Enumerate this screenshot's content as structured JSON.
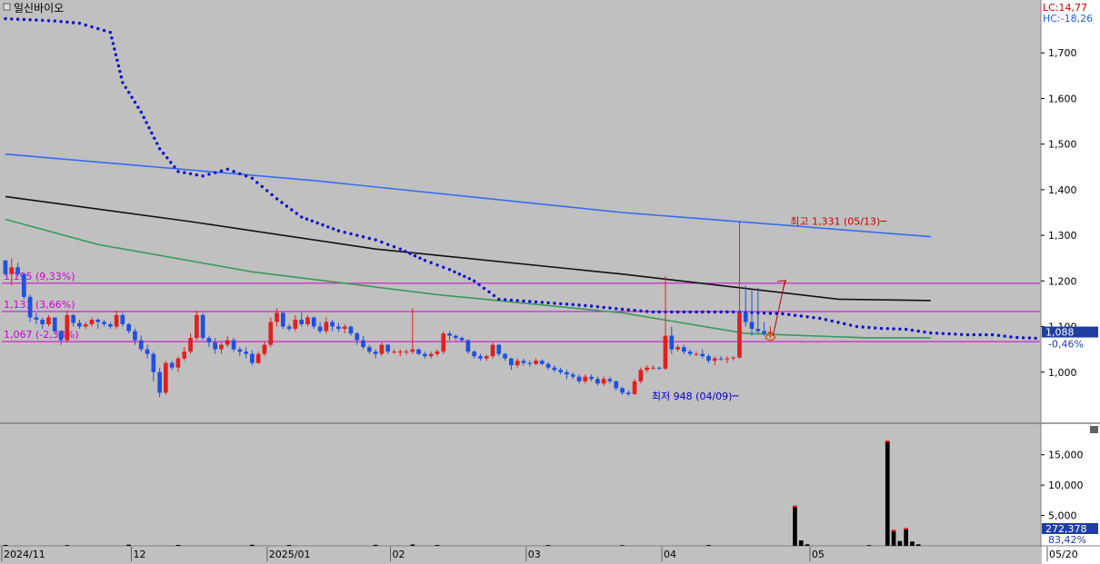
{
  "chart_title": "일신바이오",
  "indicators": {
    "lc": "LC:14,77",
    "hc": "HC:-18,26"
  },
  "colors": {
    "up": "#e02020",
    "down": "#2050e0",
    "ma_blue": "#3a6cf0",
    "ma_black": "#111111",
    "ma_green": "#3a9a5a",
    "dots": "#1010d0",
    "level": "#d000d0",
    "volume": "#000000"
  },
  "chart_data": {
    "type": "candlestick",
    "price_axis": {
      "range": [
        900,
        1800
      ],
      "ticks": [
        1000,
        1100,
        1200,
        1300,
        1400,
        1500,
        1600,
        1700
      ],
      "tick_labels": [
        "1,000",
        "1,100",
        "1,200",
        "1,300",
        "1,400",
        "1,500",
        "1,600",
        "1,700"
      ]
    },
    "volume_axis": {
      "range": [
        0,
        19000
      ],
      "ticks": [
        5000,
        10000,
        15000
      ],
      "tick_labels": [
        "5,000",
        "10,000",
        "15,000"
      ]
    },
    "x_labels": [
      {
        "label": "2024/11",
        "index": 0
      },
      {
        "label": "12",
        "index": 21
      },
      {
        "label": "2025/01",
        "index": 43
      },
      {
        "label": "02",
        "index": 63
      },
      {
        "label": "03",
        "index": 85
      },
      {
        "label": "04",
        "index": 107
      },
      {
        "label": "05",
        "index": 131
      },
      {
        "label": "05/20",
        "index": 164
      }
    ],
    "total_slots": 164,
    "candles": [
      [
        1245,
        1245,
        1210,
        1215
      ],
      [
        1215,
        1250,
        1190,
        1230
      ],
      [
        1230,
        1240,
        1210,
        1215
      ],
      [
        1215,
        1218,
        1160,
        1165
      ],
      [
        1165,
        1170,
        1110,
        1120
      ],
      [
        1120,
        1130,
        1105,
        1115
      ],
      [
        1115,
        1120,
        1095,
        1105
      ],
      [
        1105,
        1125,
        1100,
        1120
      ],
      [
        1120,
        1120,
        1085,
        1090
      ],
      [
        1090,
        1092,
        1060,
        1070
      ],
      [
        1070,
        1135,
        1065,
        1125
      ],
      [
        1125,
        1128,
        1100,
        1108
      ],
      [
        1108,
        1115,
        1095,
        1100
      ],
      [
        1100,
        1110,
        1095,
        1105
      ],
      [
        1105,
        1120,
        1100,
        1115
      ],
      [
        1115,
        1118,
        1095,
        1110
      ],
      [
        1110,
        1115,
        1100,
        1105
      ],
      [
        1105,
        1110,
        1095,
        1100
      ],
      [
        1100,
        1135,
        1095,
        1125
      ],
      [
        1125,
        1130,
        1100,
        1105
      ],
      [
        1105,
        1108,
        1085,
        1090
      ],
      [
        1090,
        1095,
        1060,
        1070
      ],
      [
        1070,
        1080,
        1045,
        1050
      ],
      [
        1050,
        1060,
        1030,
        1040
      ],
      [
        1040,
        1045,
        980,
        1000
      ],
      [
        1000,
        1010,
        945,
        955
      ],
      [
        955,
        1025,
        950,
        1020
      ],
      [
        1020,
        1025,
        1005,
        1010
      ],
      [
        1010,
        1035,
        1000,
        1030
      ],
      [
        1030,
        1055,
        1025,
        1045
      ],
      [
        1045,
        1085,
        1040,
        1075
      ],
      [
        1075,
        1135,
        1070,
        1125
      ],
      [
        1125,
        1130,
        1070,
        1075
      ],
      [
        1075,
        1080,
        1055,
        1065
      ],
      [
        1065,
        1075,
        1040,
        1050
      ],
      [
        1050,
        1065,
        1040,
        1060
      ],
      [
        1060,
        1080,
        1055,
        1070
      ],
      [
        1070,
        1075,
        1045,
        1050
      ],
      [
        1050,
        1055,
        1035,
        1045
      ],
      [
        1045,
        1055,
        1030,
        1040
      ],
      [
        1040,
        1048,
        1015,
        1020
      ],
      [
        1020,
        1045,
        1018,
        1040
      ],
      [
        1040,
        1068,
        1035,
        1060
      ],
      [
        1060,
        1120,
        1055,
        1110
      ],
      [
        1110,
        1140,
        1100,
        1130
      ],
      [
        1130,
        1132,
        1095,
        1100
      ],
      [
        1100,
        1105,
        1090,
        1095
      ],
      [
        1095,
        1125,
        1090,
        1115
      ],
      [
        1115,
        1130,
        1100,
        1105
      ],
      [
        1105,
        1125,
        1100,
        1120
      ],
      [
        1120,
        1122,
        1095,
        1100
      ],
      [
        1100,
        1110,
        1085,
        1090
      ],
      [
        1090,
        1120,
        1085,
        1110
      ],
      [
        1110,
        1115,
        1090,
        1100
      ],
      [
        1100,
        1108,
        1088,
        1095
      ],
      [
        1095,
        1105,
        1085,
        1100
      ],
      [
        1100,
        1102,
        1080,
        1085
      ],
      [
        1085,
        1088,
        1060,
        1070
      ],
      [
        1070,
        1080,
        1050,
        1055
      ],
      [
        1055,
        1060,
        1040,
        1045
      ],
      [
        1045,
        1050,
        1030,
        1040
      ],
      [
        1040,
        1065,
        1035,
        1060
      ],
      [
        1060,
        1062,
        1040,
        1045
      ],
      [
        1045,
        1050,
        1040,
        1045
      ],
      [
        1045,
        1050,
        1035,
        1045
      ],
      [
        1045,
        1050,
        1038,
        1045
      ],
      [
        1045,
        1140,
        1040,
        1050
      ],
      [
        1050,
        1052,
        1038,
        1040
      ],
      [
        1040,
        1045,
        1030,
        1035
      ],
      [
        1035,
        1045,
        1030,
        1040
      ],
      [
        1040,
        1050,
        1035,
        1045
      ],
      [
        1045,
        1090,
        1040,
        1085
      ],
      [
        1085,
        1090,
        1070,
        1080
      ],
      [
        1080,
        1082,
        1070,
        1075
      ],
      [
        1075,
        1078,
        1065,
        1070
      ],
      [
        1070,
        1072,
        1040,
        1045
      ],
      [
        1045,
        1048,
        1030,
        1035
      ],
      [
        1035,
        1040,
        1025,
        1030
      ],
      [
        1030,
        1038,
        1025,
        1035
      ],
      [
        1035,
        1065,
        1030,
        1060
      ],
      [
        1060,
        1062,
        1035,
        1040
      ],
      [
        1040,
        1042,
        1025,
        1030
      ],
      [
        1030,
        1032,
        1005,
        1015
      ],
      [
        1015,
        1030,
        1010,
        1025
      ],
      [
        1025,
        1030,
        1015,
        1020
      ],
      [
        1020,
        1025,
        1012,
        1018
      ],
      [
        1018,
        1030,
        1015,
        1025
      ],
      [
        1025,
        1028,
        1015,
        1018
      ],
      [
        1018,
        1022,
        1005,
        1010
      ],
      [
        1010,
        1015,
        1000,
        1005
      ],
      [
        1005,
        1010,
        995,
        1000
      ],
      [
        1000,
        1005,
        985,
        995
      ],
      [
        995,
        1000,
        985,
        990
      ],
      [
        990,
        995,
        975,
        980
      ],
      [
        980,
        995,
        975,
        990
      ],
      [
        990,
        995,
        980,
        985
      ],
      [
        985,
        990,
        970,
        975
      ],
      [
        975,
        990,
        970,
        985
      ],
      [
        985,
        990,
        975,
        980
      ],
      [
        980,
        982,
        960,
        965
      ],
      [
        965,
        968,
        950,
        955
      ],
      [
        955,
        960,
        948,
        952
      ],
      [
        952,
        985,
        950,
        980
      ],
      [
        980,
        1010,
        975,
        1005
      ],
      [
        1005,
        1015,
        1000,
        1010
      ],
      [
        1010,
        1015,
        1005,
        1010
      ],
      [
        1010,
        1012,
        1005,
        1008
      ],
      [
        1008,
        1210,
        1005,
        1080
      ],
      [
        1080,
        1100,
        1040,
        1050
      ],
      [
        1050,
        1060,
        1045,
        1055
      ],
      [
        1055,
        1060,
        1040,
        1045
      ],
      [
        1045,
        1050,
        1035,
        1040
      ],
      [
        1040,
        1045,
        1035,
        1040
      ],
      [
        1040,
        1050,
        1030,
        1035
      ],
      [
        1035,
        1040,
        1020,
        1025
      ],
      [
        1025,
        1035,
        1015,
        1030
      ],
      [
        1030,
        1035,
        1025,
        1028
      ],
      [
        1028,
        1035,
        1020,
        1030
      ],
      [
        1030,
        1035,
        1025,
        1032
      ],
      [
        1032,
        1331,
        1030,
        1130
      ],
      [
        1130,
        1190,
        1100,
        1110
      ],
      [
        1110,
        1180,
        1080,
        1095
      ],
      [
        1095,
        1185,
        1085,
        1090
      ],
      [
        1090,
        1110,
        1080,
        1085
      ],
      [
        1085,
        1100,
        1075,
        1088
      ]
    ],
    "candle_start_index": 0,
    "ma_blue": [
      [
        0,
        1478
      ],
      [
        50,
        1420
      ],
      [
        100,
        1350
      ],
      [
        150,
        1297
      ]
    ],
    "ma_black": [
      [
        0,
        1385
      ],
      [
        30,
        1330
      ],
      [
        60,
        1270
      ],
      [
        100,
        1215
      ],
      [
        135,
        1160
      ],
      [
        150,
        1157
      ]
    ],
    "ma_green": [
      [
        0,
        1335
      ],
      [
        15,
        1280
      ],
      [
        40,
        1220
      ],
      [
        70,
        1170
      ],
      [
        100,
        1130
      ],
      [
        120,
        1085
      ],
      [
        140,
        1075
      ],
      [
        150,
        1075
      ]
    ],
    "dots": [
      [
        0,
        1775
      ],
      [
        8,
        1770
      ],
      [
        12,
        1765
      ],
      [
        17,
        1745
      ],
      [
        19,
        1635
      ],
      [
        22,
        1570
      ],
      [
        25,
        1490
      ],
      [
        28,
        1440
      ],
      [
        32,
        1430
      ],
      [
        36,
        1445
      ],
      [
        40,
        1425
      ],
      [
        44,
        1380
      ],
      [
        48,
        1340
      ],
      [
        54,
        1310
      ],
      [
        60,
        1290
      ],
      [
        64,
        1270
      ],
      [
        68,
        1245
      ],
      [
        72,
        1225
      ],
      [
        76,
        1200
      ],
      [
        80,
        1160
      ],
      [
        85,
        1155
      ],
      [
        90,
        1150
      ],
      [
        95,
        1145
      ],
      [
        100,
        1138
      ],
      [
        105,
        1132
      ],
      [
        110,
        1132
      ],
      [
        118,
        1132
      ],
      [
        126,
        1128
      ],
      [
        132,
        1118
      ],
      [
        138,
        1100
      ],
      [
        142,
        1096
      ],
      [
        146,
        1094
      ],
      [
        150,
        1086
      ],
      [
        156,
        1082
      ],
      [
        160,
        1082
      ],
      [
        164,
        1076
      ],
      [
        168,
        1074
      ]
    ],
    "levels": [
      {
        "value": 1195,
        "label": "1,195 (9,33%)"
      },
      {
        "value": 1133,
        "label": "1,133 (3,66%)"
      },
      {
        "value": 1067,
        "label": "1,067 (-2,38%)"
      }
    ],
    "annotations": {
      "high": {
        "label": "최고 1,331 (05/13)",
        "index": 143,
        "value": 1331
      },
      "low": {
        "label": "최저 948 (04/09)",
        "index": 119,
        "value": 948
      }
    },
    "current_price": {
      "label": "1,088",
      "value": 1088,
      "change": "-0,46%"
    },
    "volume": [
      [
        0,
        150
      ],
      [
        10,
        120
      ],
      [
        20,
        200
      ],
      [
        28,
        150
      ],
      [
        40,
        180
      ],
      [
        46,
        130
      ],
      [
        60,
        160
      ],
      [
        66,
        230
      ],
      [
        70,
        140
      ],
      [
        88,
        120
      ],
      [
        100,
        110
      ],
      [
        114,
        130
      ],
      [
        128,
        6500
      ],
      [
        129,
        900
      ],
      [
        130,
        250
      ],
      [
        140,
        120
      ],
      [
        143,
        17200
      ],
      [
        144,
        2500
      ],
      [
        145,
        800
      ],
      [
        146,
        2800
      ],
      [
        147,
        700
      ],
      [
        148,
        250
      ]
    ],
    "volume_current": {
      "label": "272,378",
      "pct": "83,42%"
    }
  }
}
